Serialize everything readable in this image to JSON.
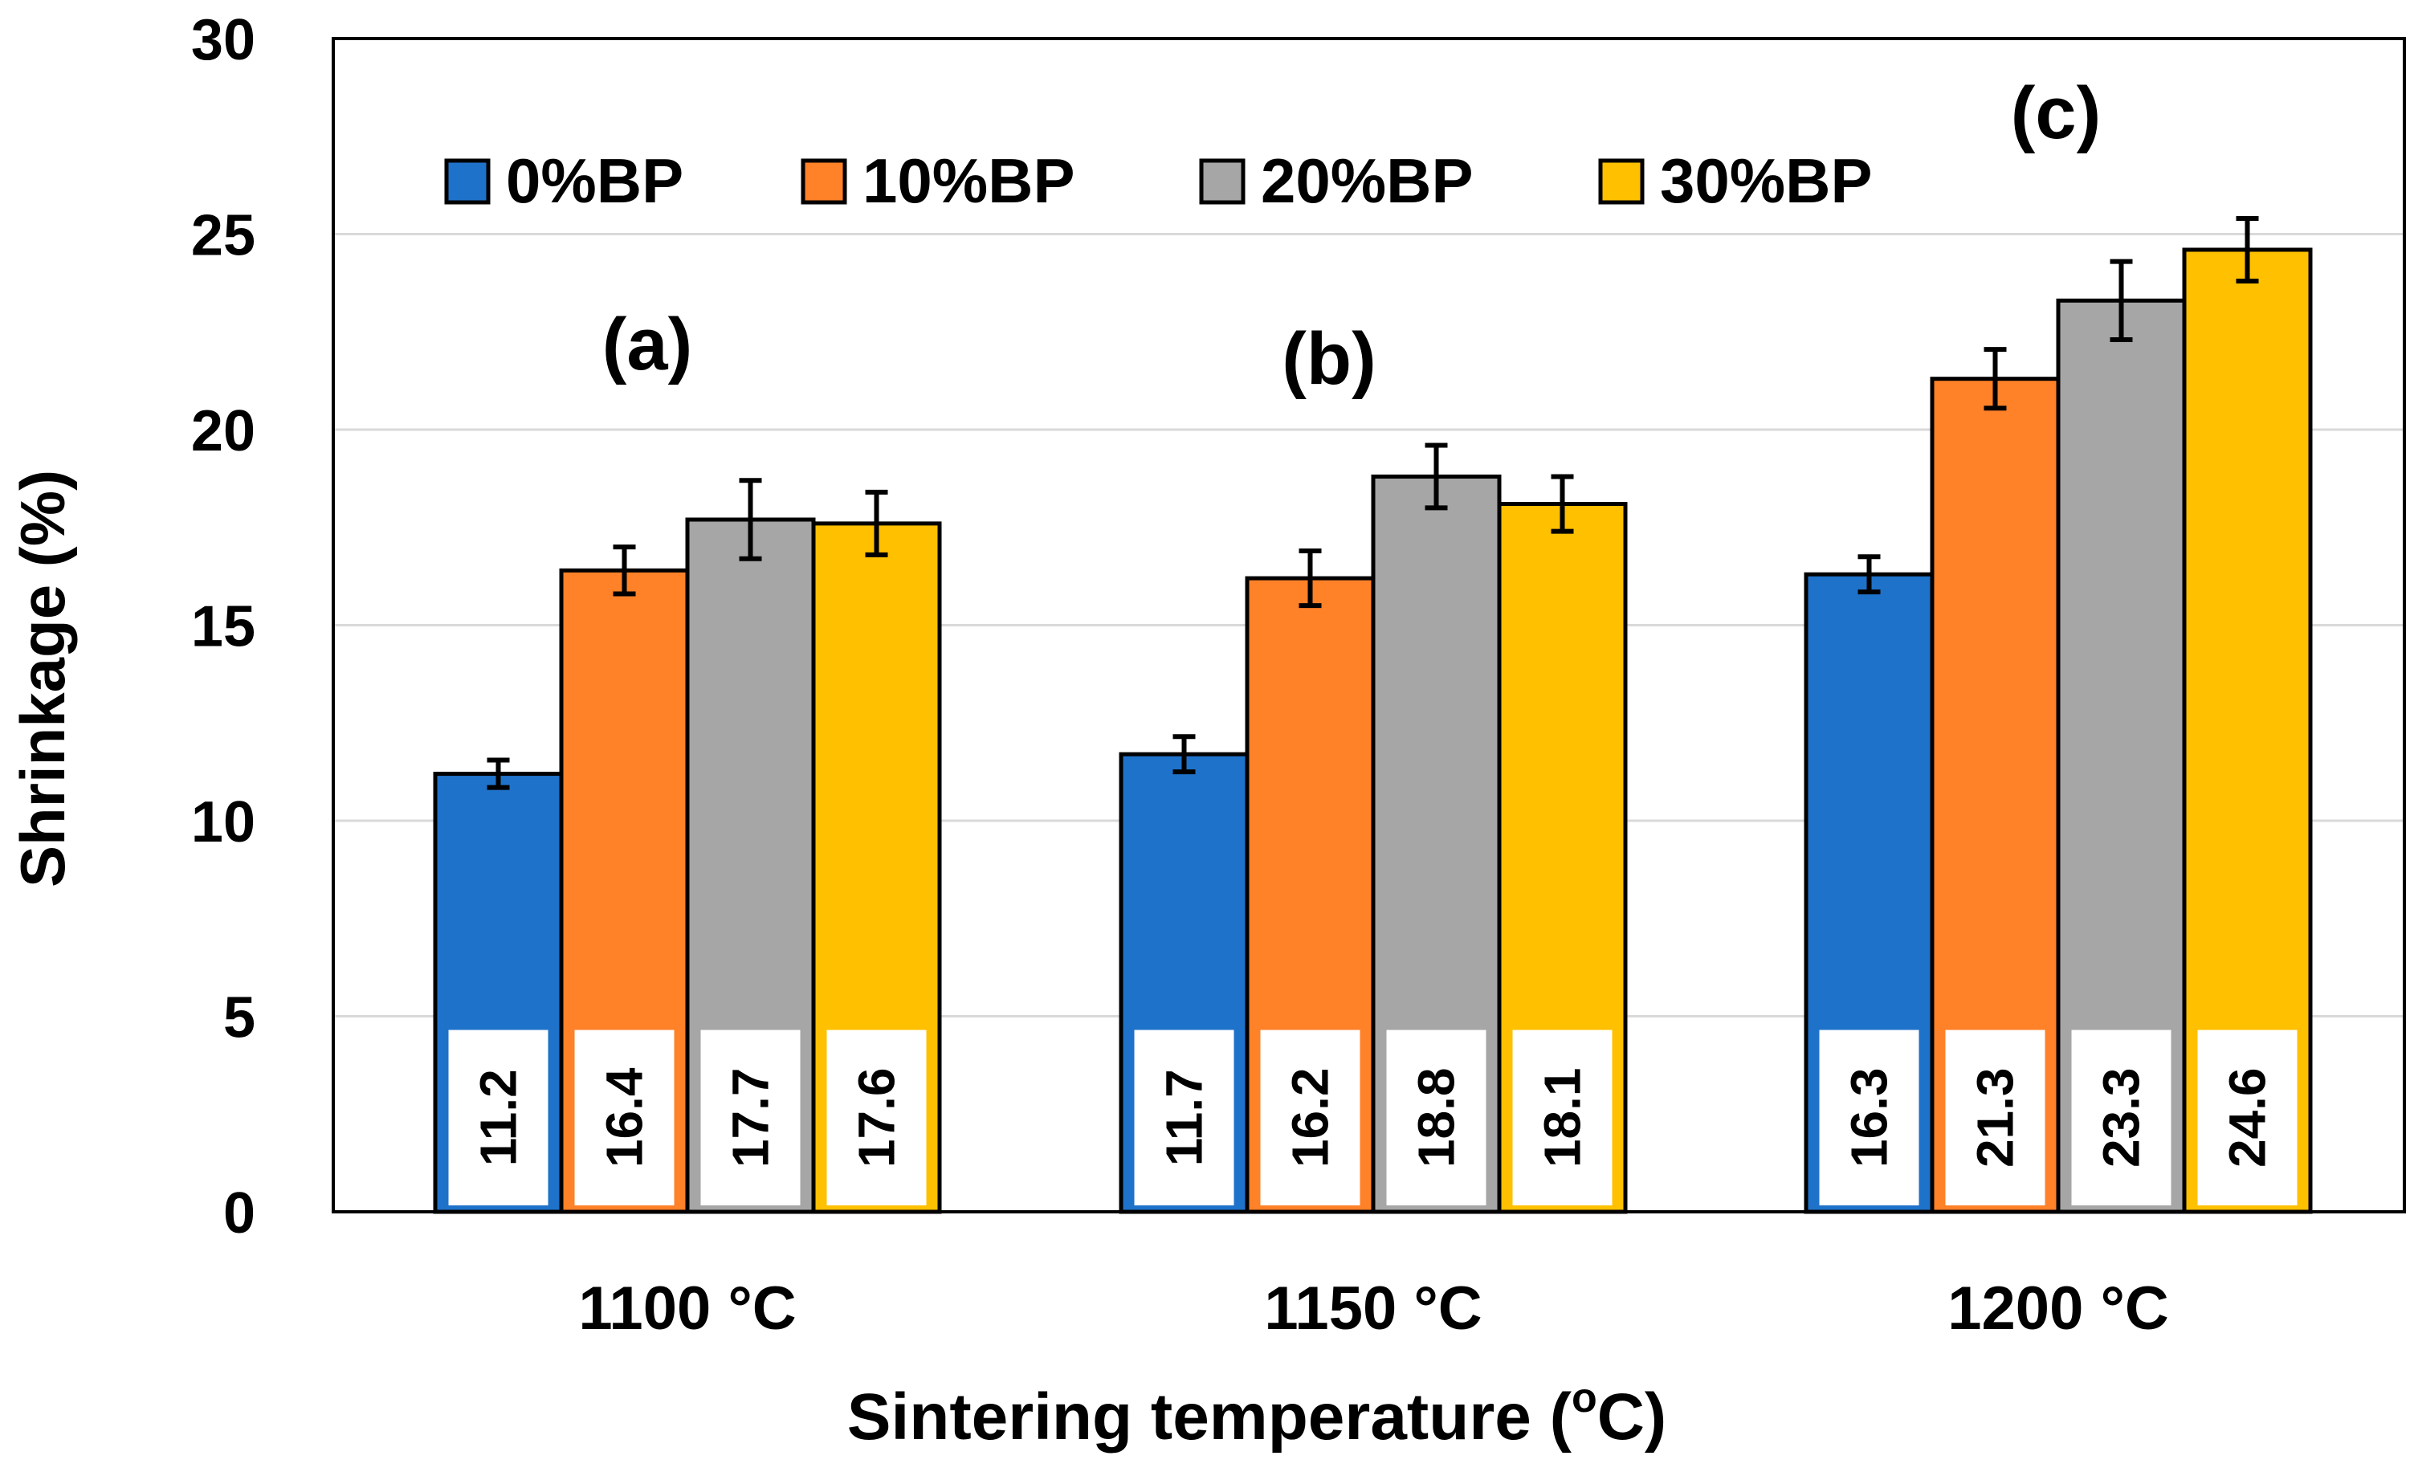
{
  "chart_data": {
    "type": "bar",
    "title": "",
    "xlabel": "Sintering temperature (",
    "xlabel_sup": "o",
    "xlabel_tail": "C)",
    "ylabel": "Shrinkage (%)",
    "categories": [
      "1100 °C",
      "1150 °C",
      "1200 °C"
    ],
    "panel_labels": [
      "(a)",
      "(b)",
      "(c)"
    ],
    "ylim": [
      0,
      30
    ],
    "yticks": [
      0,
      5,
      10,
      15,
      20,
      25,
      30
    ],
    "grid": true,
    "legend_position": "top",
    "series": [
      {
        "name": "0%BP",
        "color": "#1F72C9",
        "values": [
          11.2,
          11.7,
          16.3
        ],
        "errors": [
          0.35,
          0.45,
          0.45
        ],
        "labels": [
          "11.2",
          "11.7",
          "16.3"
        ]
      },
      {
        "name": "10%BP",
        "color": "#FF8128",
        "values": [
          16.4,
          16.2,
          21.3
        ],
        "errors": [
          0.6,
          0.7,
          0.75
        ],
        "labels": [
          "16.4",
          "16.2",
          "21.3"
        ]
      },
      {
        "name": "20%BP",
        "color": "#A6A6A6",
        "values": [
          17.7,
          18.8,
          23.3
        ],
        "errors": [
          1.0,
          0.8,
          1.0
        ],
        "labels": [
          "17.7",
          "18.8",
          "23.3"
        ]
      },
      {
        "name": "30%BP",
        "color": "#FFC000",
        "values": [
          17.6,
          18.1,
          24.6
        ],
        "errors": [
          0.8,
          0.7,
          0.8
        ],
        "labels": [
          "17.6",
          "18.1",
          "24.6"
        ]
      }
    ]
  }
}
